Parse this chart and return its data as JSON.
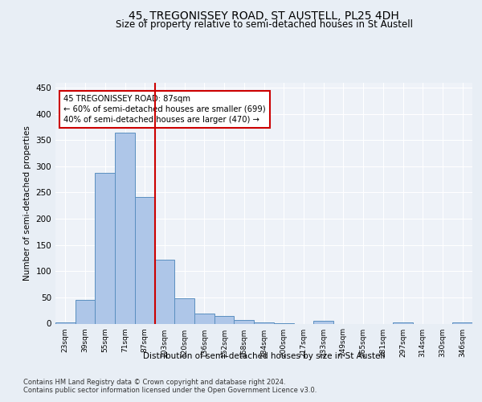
{
  "title": "45, TREGONISSEY ROAD, ST AUSTELL, PL25 4DH",
  "subtitle": "Size of property relative to semi-detached houses in St Austell",
  "xlabel": "Distribution of semi-detached houses by size in St Austell",
  "ylabel": "Number of semi-detached properties",
  "categories": [
    "23sqm",
    "39sqm",
    "55sqm",
    "71sqm",
    "87sqm",
    "103sqm",
    "120sqm",
    "136sqm",
    "152sqm",
    "168sqm",
    "184sqm",
    "200sqm",
    "217sqm",
    "233sqm",
    "249sqm",
    "265sqm",
    "281sqm",
    "297sqm",
    "314sqm",
    "330sqm",
    "346sqm"
  ],
  "values": [
    3,
    45,
    287,
    364,
    242,
    122,
    49,
    19,
    15,
    7,
    3,
    1,
    0,
    5,
    0,
    0,
    0,
    2,
    0,
    0,
    2
  ],
  "bar_color": "#aec6e8",
  "bar_edge_color": "#5a8fc0",
  "highlight_bar_index": 4,
  "annotation_text_line1": "45 TREGONISSEY ROAD: 87sqm",
  "annotation_text_line2": "← 60% of semi-detached houses are smaller (699)",
  "annotation_text_line3": "40% of semi-detached houses are larger (470) →",
  "annotation_box_color": "#ffffff",
  "annotation_box_edge_color": "#cc0000",
  "highlight_line_color": "#cc0000",
  "ylim": [
    0,
    460
  ],
  "yticks": [
    0,
    50,
    100,
    150,
    200,
    250,
    300,
    350,
    400,
    450
  ],
  "footer_line1": "Contains HM Land Registry data © Crown copyright and database right 2024.",
  "footer_line2": "Contains public sector information licensed under the Open Government Licence v3.0.",
  "bg_color": "#e8eef5",
  "plot_bg_color": "#eef2f8",
  "grid_color": "#ffffff",
  "title_fontsize": 10,
  "subtitle_fontsize": 8.5
}
